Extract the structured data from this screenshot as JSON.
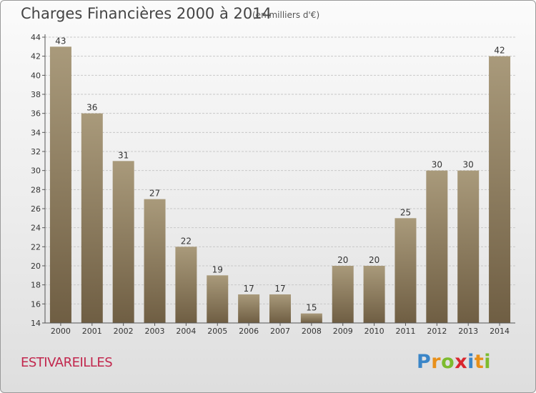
{
  "title": "Charges Financières 2000 à 2014",
  "subtitle": "(en milliers d'€)",
  "commune": "ESTIVAREILLES",
  "logo": {
    "letters": [
      "P",
      "r",
      "o",
      "x",
      "i",
      "t",
      "i"
    ],
    "colors": [
      "#3b86c8",
      "#e8901a",
      "#7dbb2e",
      "#d9262e",
      "#3b86c8",
      "#e8901a",
      "#7dbb2e"
    ]
  },
  "colors": {
    "bar_top": "#a99a7b",
    "bar_bottom": "#6f5e43",
    "grid": "#c8c8c8",
    "axis_text": "#333333",
    "accent": "#c2274d"
  },
  "chart_data": {
    "type": "bar",
    "categories": [
      "2000",
      "2001",
      "2002",
      "2003",
      "2004",
      "2005",
      "2006",
      "2007",
      "2008",
      "2009",
      "2010",
      "2011",
      "2012",
      "2013",
      "2014"
    ],
    "values": [
      43,
      36,
      31,
      27,
      22,
      19,
      17,
      17,
      15,
      20,
      20,
      25,
      30,
      30,
      42
    ],
    "ylim": [
      14,
      44
    ],
    "yticks": [
      14,
      16,
      18,
      20,
      22,
      24,
      26,
      28,
      30,
      32,
      34,
      36,
      38,
      40,
      42,
      44
    ],
    "grid": true,
    "xlabel": "",
    "ylabel": ""
  }
}
